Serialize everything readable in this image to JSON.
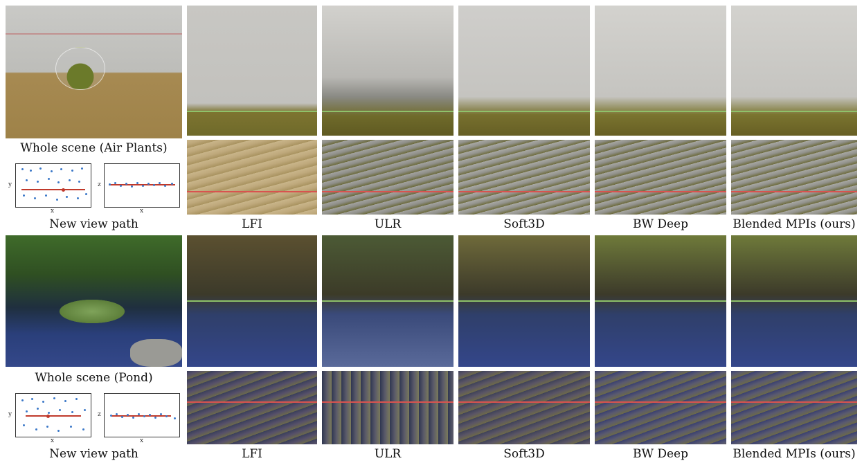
{
  "scenes": [
    {
      "whole_caption": "Whole scene (Air Plants)",
      "path_caption": "New view path",
      "plot_left": {
        "x_label": "x",
        "y_label": "y"
      },
      "plot_right": {
        "x_label": "x",
        "y_label": "z"
      }
    },
    {
      "whole_caption": "Whole scene (Pond)",
      "path_caption": "New view path",
      "plot_left": {
        "x_label": "x",
        "y_label": "y"
      },
      "plot_right": {
        "x_label": "x",
        "y_label": "z"
      }
    }
  ],
  "methods": [
    "LFI",
    "ULR",
    "Soft3D",
    "BW Deep",
    "Blended MPIs (ours)"
  ],
  "colors": {
    "crop_line": "#8fc26a",
    "epi_line": "#d9534f",
    "camera_dot": "#3b78c8",
    "path_line": "#c0392b"
  }
}
